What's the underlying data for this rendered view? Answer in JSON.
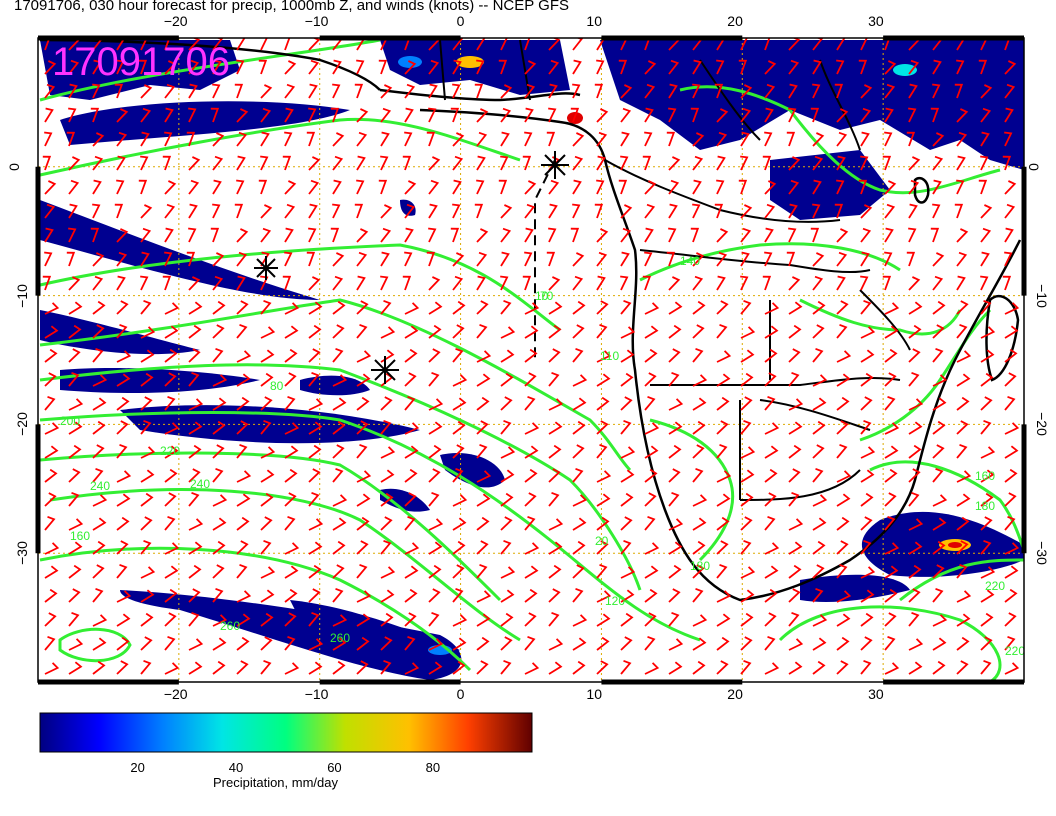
{
  "title": "17091706, 030 hour forecast for precip, 1000mb Z, and winds (knots) -- NCEP GFS",
  "stamp": "17091706",
  "lon_ticks_bottom": [
    "−20",
    "−10",
    "0",
    "10",
    "20",
    "30"
  ],
  "lon_ticks_top": [
    "−20",
    "−10",
    "0",
    "10",
    "20",
    "30"
  ],
  "lat_ticks": [
    "0",
    "−10",
    "−20",
    "−30"
  ],
  "contour_labels": [
    "10",
    "70",
    "110",
    "140",
    "80",
    "200",
    "220",
    "240",
    "240",
    "260",
    "20",
    "160",
    "180",
    "120",
    "160",
    "180",
    "220",
    "220",
    "260"
  ],
  "colorbar": {
    "label": "Precipitation, mm/day",
    "ticks": [
      "20",
      "40",
      "60",
      "80"
    ],
    "colors": [
      "#000080",
      "#0000ff",
      "#0080ff",
      "#00e5e5",
      "#00ff80",
      "#c0e000",
      "#ffc000",
      "#ff6000",
      "#e00000",
      "#600000"
    ]
  },
  "colors": {
    "frame": "#000000",
    "grid": "#ddaa00",
    "contour": "#33ee33",
    "barb": "#ff0000",
    "coast": "#000000",
    "stamp": "#ff33ff"
  }
}
